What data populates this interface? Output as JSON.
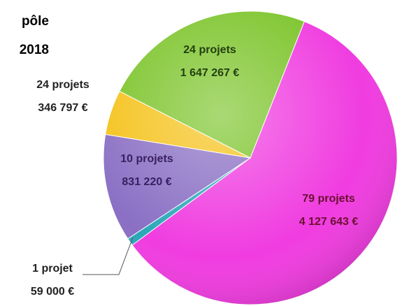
{
  "chart_data": {
    "type": "pie",
    "title_lines": [
      "pôle",
      "2018"
    ],
    "values": [
      4127643,
      59000,
      831220,
      346797,
      1647267
    ],
    "value_labels": [
      "4 127 643 €",
      "59 000 €",
      "831 220 €",
      "346 797 €",
      "1 647 267 €"
    ],
    "labels": [
      "79 projets",
      "1 projet",
      "10 projets",
      "24 projets",
      "24 projets"
    ],
    "colors": [
      "#f03ce0",
      "#2aa8b8",
      "#8a6fc4",
      "#f5c21a",
      "#7cc42a"
    ]
  }
}
